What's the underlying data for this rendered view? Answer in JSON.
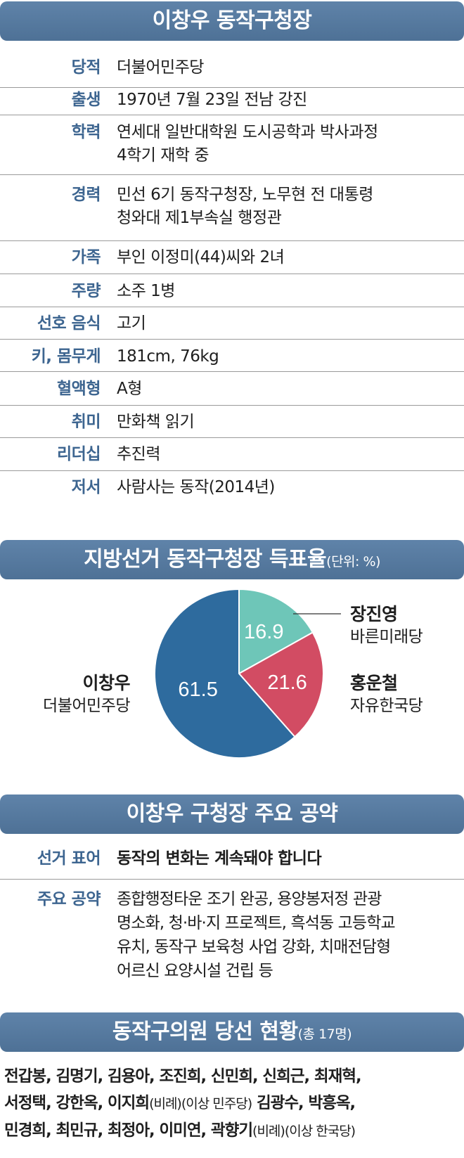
{
  "profile": {
    "title": "이창우 동작구청장",
    "rows": [
      {
        "label": "당적",
        "value": "더불어민주당"
      },
      {
        "label": "출생",
        "value": "1970년 7월 23일 전남 강진"
      },
      {
        "label": "학력",
        "value": "연세대 일반대학원 도시공학과 박사과정",
        "value2": "4학기 재학 중"
      },
      {
        "label": "경력",
        "value": "민선 6기 동작구청장, 노무현 전 대통령",
        "value2": "청와대 제1부속실 행정관"
      },
      {
        "label": "가족",
        "value": "부인 이정미(44)씨와 2녀"
      },
      {
        "label": "주량",
        "value": "소주 1병"
      },
      {
        "label": "선호 음식",
        "value": "고기"
      },
      {
        "label": "키, 몸무게",
        "value": "181cm, 76kg"
      },
      {
        "label": "혈액형",
        "value": "A형"
      },
      {
        "label": "취미",
        "value": "만화책 읽기"
      },
      {
        "label": "리더십",
        "value": "추진력"
      },
      {
        "label": "저서",
        "value": "사람사는 동작(2014년)"
      }
    ]
  },
  "election": {
    "title": "지방선거 동작구청장 득표율",
    "unit": "(단위: %)"
  },
  "chart_data": {
    "type": "pie",
    "title": "지방선거 동작구청장 득표율",
    "unit": "%",
    "slices": [
      {
        "name": "장진영",
        "party": "바른미래당",
        "value": 16.9,
        "label": "16.9",
        "color": "#6ec6b8"
      },
      {
        "name": "홍운철",
        "party": "자유한국당",
        "value": 21.6,
        "label": "21.6",
        "color": "#d24c63"
      },
      {
        "name": "이창우",
        "party": "더불어민주당",
        "value": 61.5,
        "label": "61.5",
        "color": "#2e6b9e"
      }
    ]
  },
  "pledges": {
    "title": "이창우 구청장 주요 공약",
    "slogan_label": "선거 표어",
    "slogan": "동작의 변화는 계속돼야 합니다",
    "main_label": "주요 공약",
    "lines": [
      "종합행정타운 조기 완공, 용양봉저정 관광",
      "명소화, 청·바·지 프로젝트, 흑석동 고등학교",
      "유치, 동작구 보육청 사업 강화, 치매전담형",
      "어르신 요양시설 건립 등"
    ]
  },
  "council": {
    "title": "동작구의원 당선 현황",
    "total": "(총 17명)",
    "line1": "전갑봉, 김명기, 김용아, 조진희, 신민희, 신희근, 최재혁,",
    "line2a": "서정택, 강한옥, 이지희",
    "line2b": "(비례)(이상 민주당)",
    "line2c": " 김광수, 박흥옥,",
    "line3a": "민경희, 최민규, 최정아, 이미연, 곽향기",
    "line3b": "(비례)(이상 한국당)"
  }
}
